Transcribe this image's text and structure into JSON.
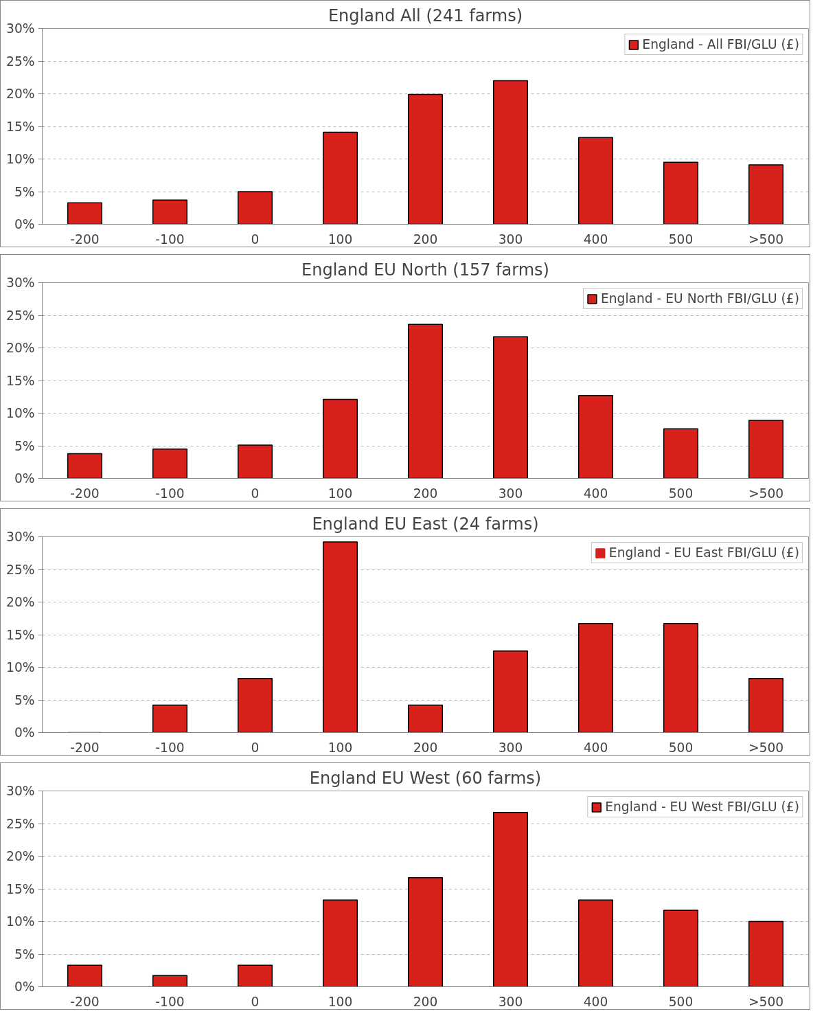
{
  "chart_data": [
    {
      "type": "bar",
      "title": "England All (241 farms)",
      "categories": [
        "-200",
        "-100",
        "0",
        "100",
        "200",
        "300",
        "400",
        "500",
        ">500"
      ],
      "series": [
        {
          "name": "England - All FBI/GLU (£)",
          "color": "#d8201c",
          "values": [
            3.3,
            3.7,
            5.0,
            14.1,
            19.9,
            22.0,
            13.3,
            9.5,
            9.1
          ]
        }
      ],
      "ylim": [
        0,
        30
      ],
      "yticks": [
        {
          "value": 0,
          "label": "0%"
        },
        {
          "value": 5,
          "label": "5%"
        },
        {
          "value": 10,
          "label": "10%"
        },
        {
          "value": 15,
          "label": "15%"
        },
        {
          "value": 20,
          "label": "20%"
        },
        {
          "value": 25,
          "label": "25%"
        },
        {
          "value": 30,
          "label": "30%"
        }
      ],
      "grid": "y",
      "legend": "top right"
    },
    {
      "type": "bar",
      "title": "England EU North (157 farms)",
      "categories": [
        "-200",
        "-100",
        "0",
        "100",
        "200",
        "300",
        "400",
        "500",
        ">500"
      ],
      "series": [
        {
          "name": "England - EU North FBI/GLU (£)",
          "color": "#d8201c",
          "values": [
            3.8,
            4.5,
            5.1,
            12.1,
            23.6,
            21.7,
            12.7,
            7.6,
            8.9
          ]
        }
      ],
      "ylim": [
        0,
        30
      ],
      "yticks": [
        {
          "value": 0,
          "label": "0%"
        },
        {
          "value": 5,
          "label": "5%"
        },
        {
          "value": 10,
          "label": "10%"
        },
        {
          "value": 15,
          "label": "15%"
        },
        {
          "value": 20,
          "label": "20%"
        },
        {
          "value": 25,
          "label": "25%"
        },
        {
          "value": 30,
          "label": "30%"
        }
      ],
      "grid": "y",
      "legend": "top right"
    },
    {
      "type": "bar",
      "title": "England EU East (24 farms)",
      "categories": [
        "-200",
        "-100",
        "0",
        "100",
        "200",
        "300",
        "400",
        "500",
        ">500"
      ],
      "series": [
        {
          "name": "England - EU East FBI/GLU (£)",
          "color": "#d8201c",
          "values": [
            0,
            4.2,
            8.3,
            29.2,
            4.2,
            12.5,
            16.7,
            16.7,
            8.3
          ]
        }
      ],
      "ylim": [
        0,
        30
      ],
      "yticks": [
        {
          "value": 0,
          "label": "0%"
        },
        {
          "value": 5,
          "label": "5%"
        },
        {
          "value": 10,
          "label": "10%"
        },
        {
          "value": 15,
          "label": "15%"
        },
        {
          "value": 20,
          "label": "20%"
        },
        {
          "value": 25,
          "label": "25%"
        },
        {
          "value": 30,
          "label": "30%"
        }
      ],
      "grid": "y",
      "legend": "top right"
    },
    {
      "type": "bar",
      "title": "England EU West (60 farms)",
      "categories": [
        "-200",
        "-100",
        "0",
        "100",
        "200",
        "300",
        "400",
        "500",
        ">500"
      ],
      "series": [
        {
          "name": "England - EU West FBI/GLU (£)",
          "color": "#d8201c",
          "values": [
            3.3,
            1.7,
            3.3,
            13.3,
            16.7,
            26.7,
            13.3,
            11.7,
            10.0
          ]
        }
      ],
      "ylim": [
        0,
        30
      ],
      "yticks": [
        {
          "value": 0,
          "label": "0%"
        },
        {
          "value": 5,
          "label": "5%"
        },
        {
          "value": 10,
          "label": "10%"
        },
        {
          "value": 15,
          "label": "15%"
        },
        {
          "value": 20,
          "label": "20%"
        },
        {
          "value": 25,
          "label": "25%"
        },
        {
          "value": 30,
          "label": "30%"
        }
      ],
      "grid": "y",
      "legend": "top right"
    }
  ]
}
